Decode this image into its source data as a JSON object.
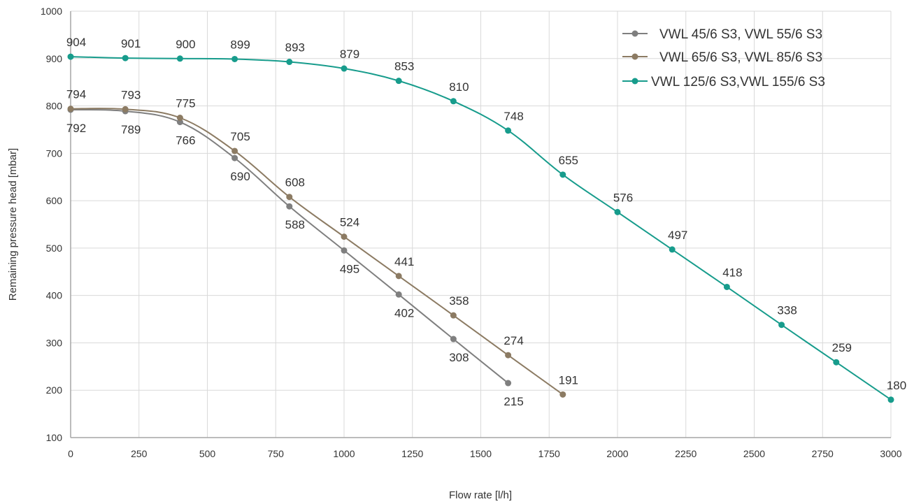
{
  "chart_data": {
    "type": "line",
    "xlabel": "Flow rate [l/h]",
    "ylabel": "Remaining pressure head [mbar]",
    "xlim": [
      0,
      3000
    ],
    "ylim": [
      100,
      1000
    ],
    "xticks": [
      0,
      250,
      500,
      750,
      1000,
      1250,
      1500,
      1750,
      2000,
      2250,
      2500,
      2750,
      3000
    ],
    "yticks": [
      100,
      200,
      300,
      400,
      500,
      600,
      700,
      800,
      900,
      1000
    ],
    "grid": true,
    "legend_position": "top-right",
    "series": [
      {
        "name": "VWL 45/6 S3, VWL 55/6 S3",
        "color": "#7f7f7f",
        "label_position": "below",
        "x": [
          0,
          200,
          400,
          600,
          800,
          1000,
          1200,
          1400,
          1600
        ],
        "values": [
          792,
          789,
          766,
          690,
          588,
          495,
          402,
          308,
          215
        ]
      },
      {
        "name": "VWL 65/6 S3, VWL 85/6 S3",
        "color": "#8c7b63",
        "label_position": "above",
        "x": [
          0,
          200,
          400,
          600,
          800,
          1000,
          1200,
          1400,
          1600,
          1800
        ],
        "values": [
          794,
          793,
          775,
          705,
          608,
          524,
          441,
          358,
          274,
          191
        ]
      },
      {
        "name": "VWL 125/6 S3,VWL 155/6 S3",
        "color": "#179c8c",
        "label_position": "above",
        "x": [
          0,
          200,
          400,
          600,
          800,
          1000,
          1200,
          1400,
          1600,
          1800,
          2000,
          2200,
          2400,
          2600,
          2800,
          3000
        ],
        "values": [
          904,
          901,
          900,
          899,
          893,
          879,
          853,
          810,
          748,
          655,
          576,
          497,
          418,
          338,
          259,
          180
        ]
      }
    ]
  }
}
